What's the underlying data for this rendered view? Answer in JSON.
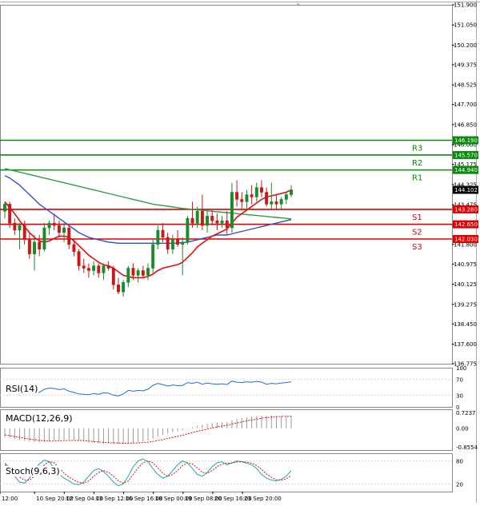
{
  "chart_data": {
    "type": "candlestick",
    "instrument": "USD/JPY",
    "price_axis": {
      "min": 136.775,
      "max": 151.9,
      "tick_labels": [
        "151.900",
        "151.050",
        "150.200",
        "149.375",
        "148.525",
        "147.700",
        "146.850",
        "146.000",
        "145.175",
        "144.325",
        "143.475",
        "142.625",
        "141.800",
        "140.975",
        "140.125",
        "139.275",
        "138.450",
        "137.600",
        "136.775"
      ]
    },
    "time_axis": {
      "labels": [
        "12:00",
        "10 Sep 20:00",
        "12 Sep 04:00",
        "13 Sep 12:00",
        "16 Sep 16:00",
        "18 Sep 00:00",
        "19 Sep 08:00",
        "20 Sep 16:00",
        "23 Sep 20:00"
      ],
      "label_index": [
        0,
        9,
        18,
        27,
        36,
        45,
        54,
        63,
        72
      ]
    },
    "levels": [
      {
        "name": "R3",
        "value": 146.19,
        "value_label": "146.190",
        "color": "#0a8a0a"
      },
      {
        "name": "R2",
        "value": 145.57,
        "value_label": "145.570",
        "color": "#0a8a0a"
      },
      {
        "name": "R1",
        "value": 144.94,
        "value_label": "144.940",
        "color": "#0a8a0a"
      },
      {
        "name": "S1",
        "value": 143.28,
        "value_label": "143.280",
        "color": "#e00000"
      },
      {
        "name": "S2",
        "value": 142.65,
        "value_label": "142.650",
        "color": "#e00000"
      },
      {
        "name": "S3",
        "value": 142.03,
        "value_label": "142.030",
        "color": "#e00000"
      }
    ],
    "current_price": {
      "value": 144.102,
      "label": "144.102"
    },
    "candles": [
      {
        "o": 143.2,
        "h": 143.6,
        "l": 142.9,
        "c": 143.5
      },
      {
        "o": 143.5,
        "h": 143.6,
        "l": 142.5,
        "c": 142.7
      },
      {
        "o": 142.7,
        "h": 142.9,
        "l": 142.2,
        "c": 142.4
      },
      {
        "o": 142.4,
        "h": 142.7,
        "l": 141.6,
        "c": 142.6
      },
      {
        "o": 142.6,
        "h": 142.8,
        "l": 141.8,
        "c": 142.0
      },
      {
        "o": 142.0,
        "h": 142.3,
        "l": 141.2,
        "c": 141.4
      },
      {
        "o": 141.4,
        "h": 142.2,
        "l": 140.7,
        "c": 141.9
      },
      {
        "o": 141.9,
        "h": 142.2,
        "l": 141.3,
        "c": 141.6
      },
      {
        "o": 141.6,
        "h": 142.7,
        "l": 141.5,
        "c": 142.5
      },
      {
        "o": 142.5,
        "h": 142.8,
        "l": 142.2,
        "c": 142.7
      },
      {
        "o": 142.7,
        "h": 143.1,
        "l": 142.4,
        "c": 142.6
      },
      {
        "o": 142.6,
        "h": 142.8,
        "l": 142.1,
        "c": 142.3
      },
      {
        "o": 142.3,
        "h": 142.7,
        "l": 141.9,
        "c": 142.5
      },
      {
        "o": 142.5,
        "h": 142.6,
        "l": 141.6,
        "c": 141.8
      },
      {
        "o": 141.8,
        "h": 142.0,
        "l": 141.3,
        "c": 141.5
      },
      {
        "o": 141.5,
        "h": 141.6,
        "l": 140.7,
        "c": 140.9
      },
      {
        "o": 140.9,
        "h": 141.2,
        "l": 140.6,
        "c": 140.8
      },
      {
        "o": 140.8,
        "h": 141.0,
        "l": 140.4,
        "c": 140.7
      },
      {
        "o": 140.7,
        "h": 141.1,
        "l": 140.5,
        "c": 140.9
      },
      {
        "o": 140.9,
        "h": 141.0,
        "l": 140.4,
        "c": 140.6
      },
      {
        "o": 140.6,
        "h": 141.0,
        "l": 140.3,
        "c": 140.9
      },
      {
        "o": 140.9,
        "h": 141.1,
        "l": 140.7,
        "c": 140.8
      },
      {
        "o": 140.8,
        "h": 140.9,
        "l": 139.9,
        "c": 140.1
      },
      {
        "o": 140.1,
        "h": 140.4,
        "l": 139.7,
        "c": 139.8
      },
      {
        "o": 139.8,
        "h": 140.3,
        "l": 139.6,
        "c": 140.2
      },
      {
        "o": 140.2,
        "h": 140.9,
        "l": 140.0,
        "c": 140.8
      },
      {
        "o": 140.8,
        "h": 141.0,
        "l": 140.3,
        "c": 140.5
      },
      {
        "o": 140.5,
        "h": 140.8,
        "l": 140.2,
        "c": 140.7
      },
      {
        "o": 140.7,
        "h": 140.9,
        "l": 140.4,
        "c": 140.5
      },
      {
        "o": 140.5,
        "h": 141.0,
        "l": 140.3,
        "c": 140.8
      },
      {
        "o": 140.8,
        "h": 142.0,
        "l": 140.6,
        "c": 141.8
      },
      {
        "o": 141.8,
        "h": 142.6,
        "l": 141.6,
        "c": 142.4
      },
      {
        "o": 142.4,
        "h": 142.7,
        "l": 141.9,
        "c": 142.1
      },
      {
        "o": 142.1,
        "h": 142.3,
        "l": 141.4,
        "c": 141.6
      },
      {
        "o": 141.6,
        "h": 142.2,
        "l": 141.4,
        "c": 142.0
      },
      {
        "o": 142.0,
        "h": 142.4,
        "l": 141.7,
        "c": 141.8
      },
      {
        "o": 141.8,
        "h": 142.1,
        "l": 140.5,
        "c": 141.9
      },
      {
        "o": 141.9,
        "h": 143.0,
        "l": 141.8,
        "c": 142.9
      },
      {
        "o": 142.9,
        "h": 143.6,
        "l": 142.5,
        "c": 142.7
      },
      {
        "o": 142.7,
        "h": 143.4,
        "l": 142.5,
        "c": 143.2
      },
      {
        "o": 143.2,
        "h": 143.9,
        "l": 142.4,
        "c": 142.6
      },
      {
        "o": 142.6,
        "h": 143.2,
        "l": 142.3,
        "c": 143.0
      },
      {
        "o": 143.0,
        "h": 143.3,
        "l": 142.6,
        "c": 142.8
      },
      {
        "o": 142.8,
        "h": 143.1,
        "l": 142.4,
        "c": 142.7
      },
      {
        "o": 142.7,
        "h": 143.0,
        "l": 142.5,
        "c": 142.8
      },
      {
        "o": 142.8,
        "h": 143.2,
        "l": 142.2,
        "c": 142.5
      },
      {
        "o": 142.5,
        "h": 144.4,
        "l": 142.3,
        "c": 144.0
      },
      {
        "o": 144.0,
        "h": 144.5,
        "l": 143.4,
        "c": 143.7
      },
      {
        "o": 143.7,
        "h": 144.0,
        "l": 143.3,
        "c": 143.6
      },
      {
        "o": 143.6,
        "h": 144.1,
        "l": 143.2,
        "c": 143.9
      },
      {
        "o": 143.9,
        "h": 144.3,
        "l": 143.5,
        "c": 143.8
      },
      {
        "o": 143.8,
        "h": 144.4,
        "l": 143.6,
        "c": 144.2
      },
      {
        "o": 144.2,
        "h": 144.5,
        "l": 143.8,
        "c": 144.0
      },
      {
        "o": 144.0,
        "h": 144.2,
        "l": 143.4,
        "c": 143.5
      },
      {
        "o": 143.5,
        "h": 144.4,
        "l": 143.3,
        "c": 143.6
      },
      {
        "o": 143.6,
        "h": 143.9,
        "l": 143.3,
        "c": 143.5
      },
      {
        "o": 143.5,
        "h": 143.8,
        "l": 143.3,
        "c": 143.7
      },
      {
        "o": 143.7,
        "h": 144.0,
        "l": 143.5,
        "c": 143.9
      },
      {
        "o": 143.9,
        "h": 144.3,
        "l": 143.8,
        "c": 144.1
      }
    ],
    "sma_short": {
      "color": "#e01010",
      "values": [
        143.6,
        143.35,
        143.1,
        142.8,
        142.55,
        142.3,
        142.1,
        141.95,
        141.9,
        141.95,
        142.05,
        142.15,
        142.15,
        142.1,
        141.95,
        141.75,
        141.55,
        141.35,
        141.2,
        141.05,
        140.95,
        140.9,
        140.8,
        140.65,
        140.5,
        140.45,
        140.4,
        140.4,
        140.4,
        140.45,
        140.55,
        140.7,
        140.8,
        140.85,
        140.9,
        140.95,
        141.05,
        141.25,
        141.45,
        141.7,
        141.85,
        142.0,
        142.15,
        142.25,
        142.35,
        142.45,
        142.7,
        142.95,
        143.1,
        143.25,
        143.4,
        143.55,
        143.7,
        143.8,
        143.85,
        143.9,
        143.95,
        144.0,
        144.1
      ]
    },
    "sma_mid": {
      "color": "#3050d0",
      "values": [
        144.7,
        144.6,
        144.45,
        144.3,
        144.1,
        143.9,
        143.7,
        143.5,
        143.35,
        143.2,
        143.05,
        142.9,
        142.75,
        142.6,
        142.45,
        142.3,
        142.2,
        142.1,
        142.05,
        142.0,
        141.95,
        141.9,
        141.88,
        141.85,
        141.85,
        141.85,
        141.85,
        141.85,
        141.85,
        141.85,
        141.85,
        141.85,
        141.85,
        141.85,
        141.85,
        141.86,
        141.88,
        141.9,
        141.95,
        142.0,
        142.05,
        142.1,
        142.15,
        142.2,
        142.2,
        142.2,
        142.25,
        142.3,
        142.35,
        142.4,
        142.45,
        142.5,
        142.55,
        142.6,
        142.65,
        142.7,
        142.75,
        142.8,
        142.85
      ]
    },
    "sma_long": {
      "color": "#2e9e4a",
      "values": [
        145.0,
        144.95,
        144.9,
        144.85,
        144.8,
        144.75,
        144.7,
        144.65,
        144.6,
        144.55,
        144.5,
        144.45,
        144.4,
        144.35,
        144.3,
        144.25,
        144.2,
        144.15,
        144.1,
        144.05,
        144.0,
        143.95,
        143.9,
        143.85,
        143.8,
        143.75,
        143.7,
        143.65,
        143.6,
        143.55,
        143.5,
        143.47,
        143.44,
        143.41,
        143.38,
        143.35,
        143.32,
        143.3,
        143.28,
        143.26,
        143.24,
        143.22,
        143.2,
        143.18,
        143.16,
        143.14,
        143.12,
        143.1,
        143.08,
        143.06,
        143.04,
        143.02,
        143.0,
        142.98,
        142.96,
        142.94,
        142.92,
        142.9,
        142.88
      ]
    },
    "rsi": {
      "label": "RSI(14)",
      "ticks": [
        "100",
        "70",
        "30",
        "0"
      ],
      "line_color": "#1e6fd9",
      "values": [
        52,
        45,
        42,
        44,
        40,
        36,
        38,
        37,
        45,
        48,
        47,
        44,
        46,
        40,
        37,
        33,
        32,
        31,
        34,
        32,
        36,
        35,
        30,
        28,
        33,
        42,
        40,
        42,
        41,
        45,
        55,
        60,
        57,
        53,
        56,
        54,
        55,
        62,
        60,
        63,
        58,
        61,
        59,
        58,
        59,
        57,
        66,
        63,
        62,
        64,
        63,
        65,
        63,
        58,
        60,
        59,
        61,
        62,
        64
      ]
    },
    "macd": {
      "label": "MACD(12,26,9)",
      "ticks": [
        "0.7237",
        "0.00",
        "-0.8554"
      ],
      "signal_color": "#e01010",
      "histogram": [
        -0.4,
        -0.45,
        -0.5,
        -0.55,
        -0.58,
        -0.62,
        -0.64,
        -0.65,
        -0.63,
        -0.6,
        -0.56,
        -0.54,
        -0.52,
        -0.52,
        -0.54,
        -0.58,
        -0.62,
        -0.66,
        -0.68,
        -0.7,
        -0.71,
        -0.71,
        -0.72,
        -0.73,
        -0.72,
        -0.69,
        -0.66,
        -0.63,
        -0.6,
        -0.56,
        -0.48,
        -0.38,
        -0.3,
        -0.24,
        -0.18,
        -0.14,
        -0.1,
        -0.02,
        0.05,
        0.12,
        0.16,
        0.2,
        0.23,
        0.26,
        0.28,
        0.29,
        0.36,
        0.42,
        0.46,
        0.5,
        0.53,
        0.56,
        0.58,
        0.58,
        0.58,
        0.57,
        0.56,
        0.56,
        0.57
      ],
      "signal": [
        -0.3,
        -0.34,
        -0.38,
        -0.42,
        -0.46,
        -0.5,
        -0.53,
        -0.56,
        -0.58,
        -0.59,
        -0.59,
        -0.58,
        -0.57,
        -0.56,
        -0.56,
        -0.56,
        -0.57,
        -0.59,
        -0.61,
        -0.63,
        -0.65,
        -0.66,
        -0.67,
        -0.68,
        -0.69,
        -0.69,
        -0.68,
        -0.67,
        -0.66,
        -0.64,
        -0.61,
        -0.57,
        -0.52,
        -0.47,
        -0.42,
        -0.37,
        -0.32,
        -0.26,
        -0.2,
        -0.14,
        -0.09,
        -0.04,
        0.01,
        0.06,
        0.1,
        0.14,
        0.19,
        0.24,
        0.29,
        0.34,
        0.38,
        0.42,
        0.46,
        0.49,
        0.51,
        0.53,
        0.54,
        0.55,
        0.55
      ]
    },
    "stoch": {
      "label": "Stoch(9,6,3)",
      "ticks": [
        "80",
        "20"
      ],
      "k_color": "#1aa8b0",
      "d_color": "#e01010",
      "k": [
        75,
        60,
        40,
        25,
        22,
        35,
        55,
        72,
        82,
        78,
        60,
        45,
        35,
        28,
        20,
        18,
        25,
        40,
        55,
        60,
        52,
        40,
        25,
        15,
        20,
        40,
        65,
        80,
        85,
        78,
        60,
        45,
        35,
        40,
        55,
        70,
        80,
        75,
        60,
        45,
        40,
        50,
        65,
        75,
        78,
        70,
        75,
        80,
        78,
        74,
        70,
        60,
        45,
        35,
        30,
        28,
        32,
        40,
        55
      ],
      "d": [
        70,
        64,
        52,
        38,
        30,
        30,
        40,
        55,
        70,
        78,
        75,
        62,
        48,
        38,
        30,
        24,
        22,
        28,
        40,
        50,
        55,
        50,
        40,
        28,
        22,
        28,
        45,
        62,
        75,
        80,
        75,
        62,
        48,
        40,
        45,
        55,
        68,
        75,
        72,
        62,
        50,
        48,
        55,
        65,
        72,
        74,
        74,
        77,
        78,
        77,
        74,
        68,
        58,
        46,
        37,
        31,
        30,
        33,
        42
      ]
    }
  }
}
